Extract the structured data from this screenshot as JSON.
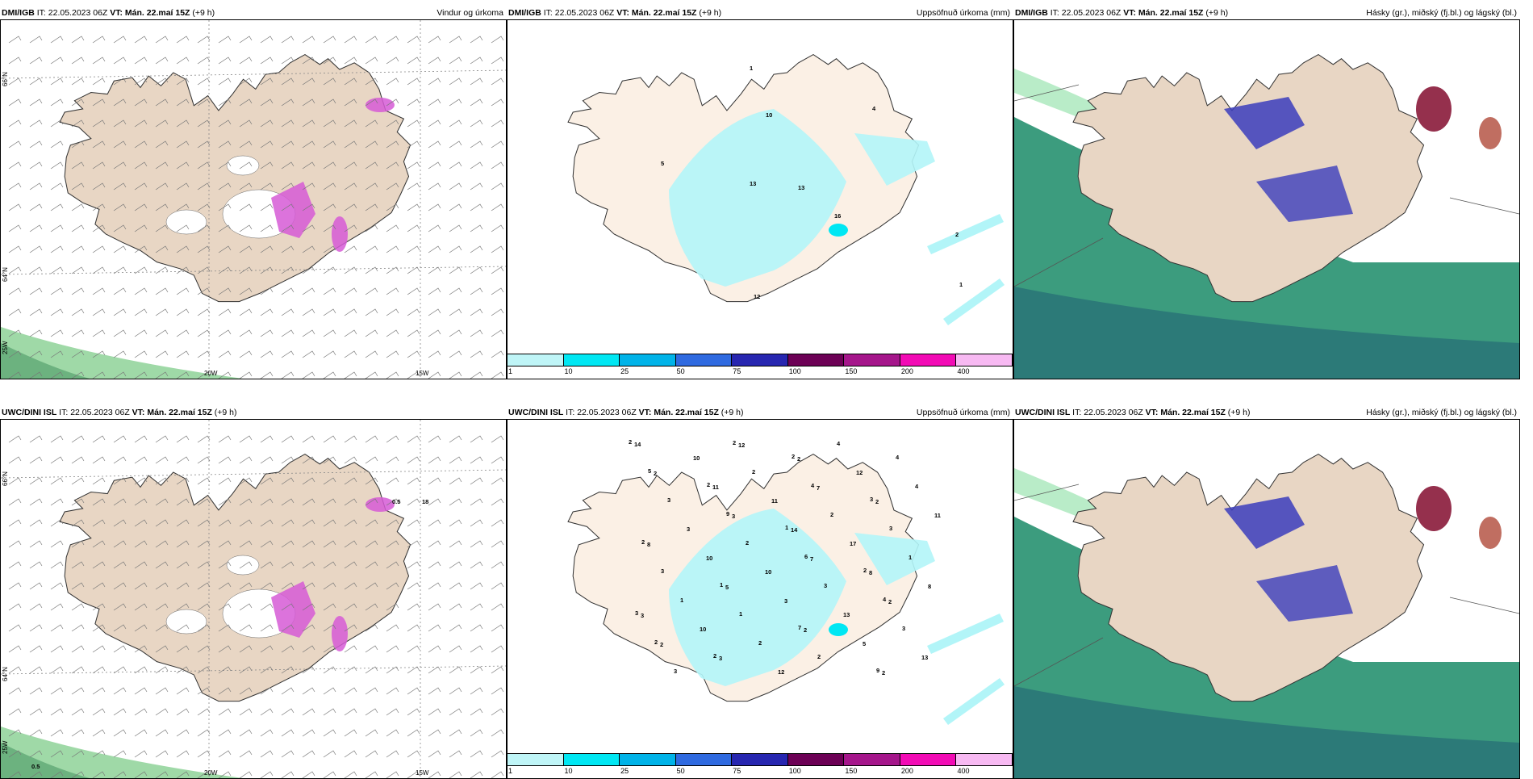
{
  "panels": [
    {
      "source": "DMI/IGB",
      "it_label": "IT:",
      "it": "22.05.2023 06Z",
      "vt_label": "VT: Mán. 22.maí 15Z",
      "lead": "(+9 h)",
      "title": "Vindur og úrkoma",
      "kind": "wind"
    },
    {
      "source": "DMI/IGB",
      "it_label": "IT:",
      "it": "22.05.2023 06Z",
      "vt_label": "VT: Mán. 22.maí 15Z",
      "lead": "(+9 h)",
      "title": "Uppsöfnuð úrkoma (mm)",
      "kind": "precip"
    },
    {
      "source": "DMI/IGB",
      "it_label": "IT:",
      "it": "22.05.2023 06Z",
      "vt_label": "VT: Mán. 22.maí 15Z",
      "lead": "(+9 h)",
      "title": "Hásky (gr.), miðský (fj.bl.) og lágský (bl.)",
      "kind": "cloud"
    },
    {
      "source": "UWC/DINI ISL",
      "it_label": "IT:",
      "it": "22.05.2023 06Z",
      "vt_label": "VT: Mán. 22.maí 15Z",
      "lead": "(+9 h)",
      "title": "",
      "kind": "wind"
    },
    {
      "source": "UWC/DINI ISL",
      "it_label": "IT:",
      "it": "22.05.2023 06Z",
      "vt_label": "VT: Mán. 22.maí 15Z",
      "lead": "(+9 h)",
      "title": "Uppsöfnuð úrkoma (mm)",
      "kind": "precip"
    },
    {
      "source": "UWC/DINI ISL",
      "it_label": "IT:",
      "it": "22.05.2023 06Z",
      "vt_label": "VT: Mán. 22.maí 15Z",
      "lead": "(+9 h)",
      "title": "Hásky (gr.), miðský (fj.bl.) og lágský (bl.)",
      "kind": "cloud"
    }
  ],
  "axes": {
    "lat_66": "66°N",
    "lat_64": "64°N",
    "lon_25": "25W",
    "lon_20": "20W",
    "lon_15": "15W"
  },
  "wind_labels": {
    "top": [],
    "bottom": [
      "0.5",
      "18",
      "0.5"
    ]
  },
  "precip_numbers": {
    "top": [
      "1",
      "10",
      "4",
      "5",
      "13",
      "13",
      "16",
      "2",
      "1",
      "12"
    ],
    "bottom": [
      "2",
      "2",
      "1",
      "2",
      "3",
      "2",
      "2",
      "3",
      "2",
      "1",
      "7",
      "9",
      "5",
      "9",
      "6",
      "4",
      "2",
      "2",
      "4",
      "3",
      "3",
      "1",
      "2",
      "4",
      "3",
      "2",
      "3",
      "3",
      "3",
      "2",
      "2",
      "1",
      "1",
      "2",
      "4",
      "4",
      "3",
      "10",
      "13",
      "13",
      "10",
      "11",
      "17",
      "8",
      "10",
      "12",
      "12",
      "11",
      "10",
      "3",
      "5",
      "14",
      "11",
      "14",
      "8",
      "3",
      "3",
      "2",
      "2",
      "8",
      "5",
      "2",
      "2",
      "2",
      "3",
      "7",
      "2",
      "2",
      "12",
      "7"
    ]
  },
  "colorbar": {
    "colors": [
      "#bff5f7",
      "#00e7f3",
      "#00b3e8",
      "#2f6ae0",
      "#2726b0",
      "#6c0055",
      "#a5168b",
      "#f20bb5",
      "#f7b9f2"
    ],
    "ticks": [
      "1",
      "10",
      "25",
      "50",
      "75",
      "100",
      "150",
      "200",
      "400"
    ]
  },
  "colors": {
    "land": "#e8d6c4",
    "land_precip": "#fbf0e5",
    "sea_green": "#3c9c7e",
    "cloud_white": "#ffffff",
    "precip_cyan": "#b2f5f8",
    "wind_pink": "#d65ad6"
  }
}
